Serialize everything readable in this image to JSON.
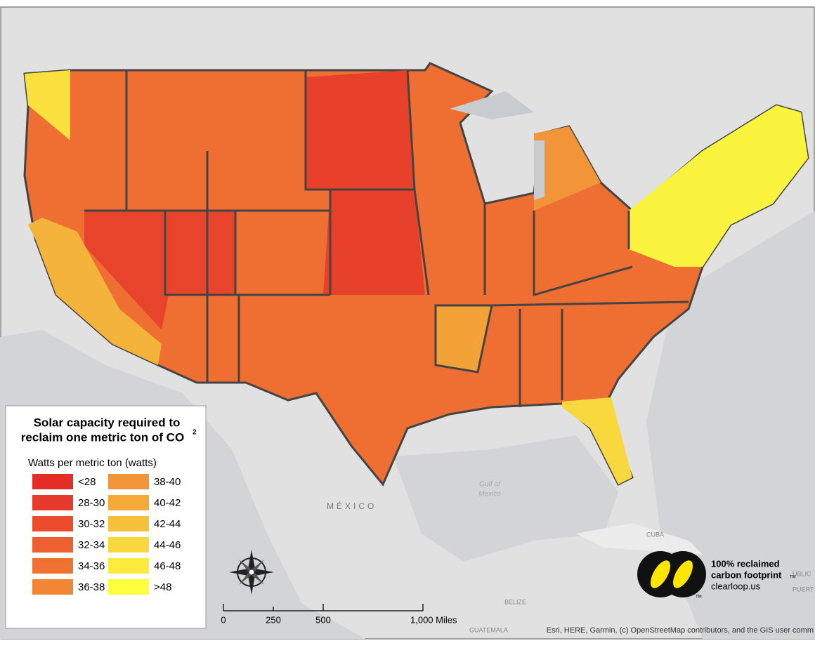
{
  "legend": {
    "title_line1": "Solar capacity required to",
    "title_line2": "reclaim one metric ton of CO",
    "title_superscript": "2",
    "subtitle": "Watts per metric ton (watts)",
    "items": [
      {
        "label": "<28",
        "color": "#e52d27"
      },
      {
        "label": "28-30",
        "color": "#e73a2a"
      },
      {
        "label": "30-32",
        "color": "#ea4c2d"
      },
      {
        "label": "32-34",
        "color": "#ed5f30"
      },
      {
        "label": "34-36",
        "color": "#ef7233"
      },
      {
        "label": "36-38",
        "color": "#f28635"
      },
      {
        "label": "38-40",
        "color": "#f29538"
      },
      {
        "label": "40-42",
        "color": "#f4a939"
      },
      {
        "label": "42-44",
        "color": "#f6c03b"
      },
      {
        "label": "44-46",
        "color": "#f9d83e"
      },
      {
        "label": "46-48",
        "color": "#fbeb3f"
      },
      {
        "label": ">48",
        "color": "#ffff3d"
      }
    ]
  },
  "scale_bar": {
    "labels": [
      "0",
      "250",
      "500",
      "1,000 Miles"
    ]
  },
  "places": {
    "mexico": "MÉXICO",
    "gulf_line1": "Gulf of",
    "gulf_line2": "Mexico",
    "cuba": "CUBA",
    "belize": "BELIZE",
    "guatemala": "GUATEMALA",
    "puerto": "PUERT",
    "republic": "UBLIC"
  },
  "logo": {
    "line1": "100% reclaimed",
    "line2": "carbon footprint",
    "tm": "TM",
    "line3": "clearloop.us"
  },
  "attribution": "Esri, HERE, Garmin, (c) OpenStreetMap contributors, and the GIS user comm"
}
